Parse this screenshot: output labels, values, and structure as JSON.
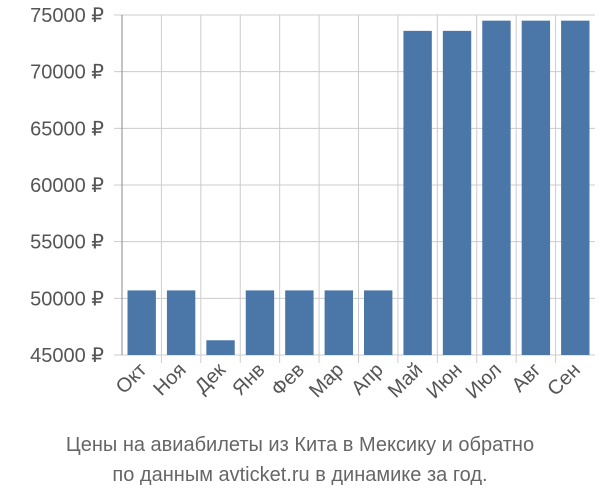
{
  "chart_data": {
    "type": "bar",
    "categories": [
      "Окт",
      "Ноя",
      "Дек",
      "Янв",
      "Фев",
      "Мар",
      "Апр",
      "Май",
      "Июн",
      "Июл",
      "Авг",
      "Сен"
    ],
    "values": [
      50700,
      50700,
      46300,
      50700,
      50700,
      50700,
      50700,
      73600,
      73600,
      74500,
      74500,
      74500
    ],
    "ylim": [
      45000,
      75000
    ],
    "yticks": [
      45000,
      50000,
      55000,
      60000,
      65000,
      70000,
      75000
    ],
    "currency_suffix": " ₽",
    "grid": true,
    "bar_color": "#4a76a8",
    "grid_color": "#cccccc",
    "axis_color": "#888888"
  },
  "caption": {
    "line1": "Цены на авиабилеты из Кита в Мексику и обратно",
    "line2": "по данным avticket.ru в динамике за год."
  }
}
